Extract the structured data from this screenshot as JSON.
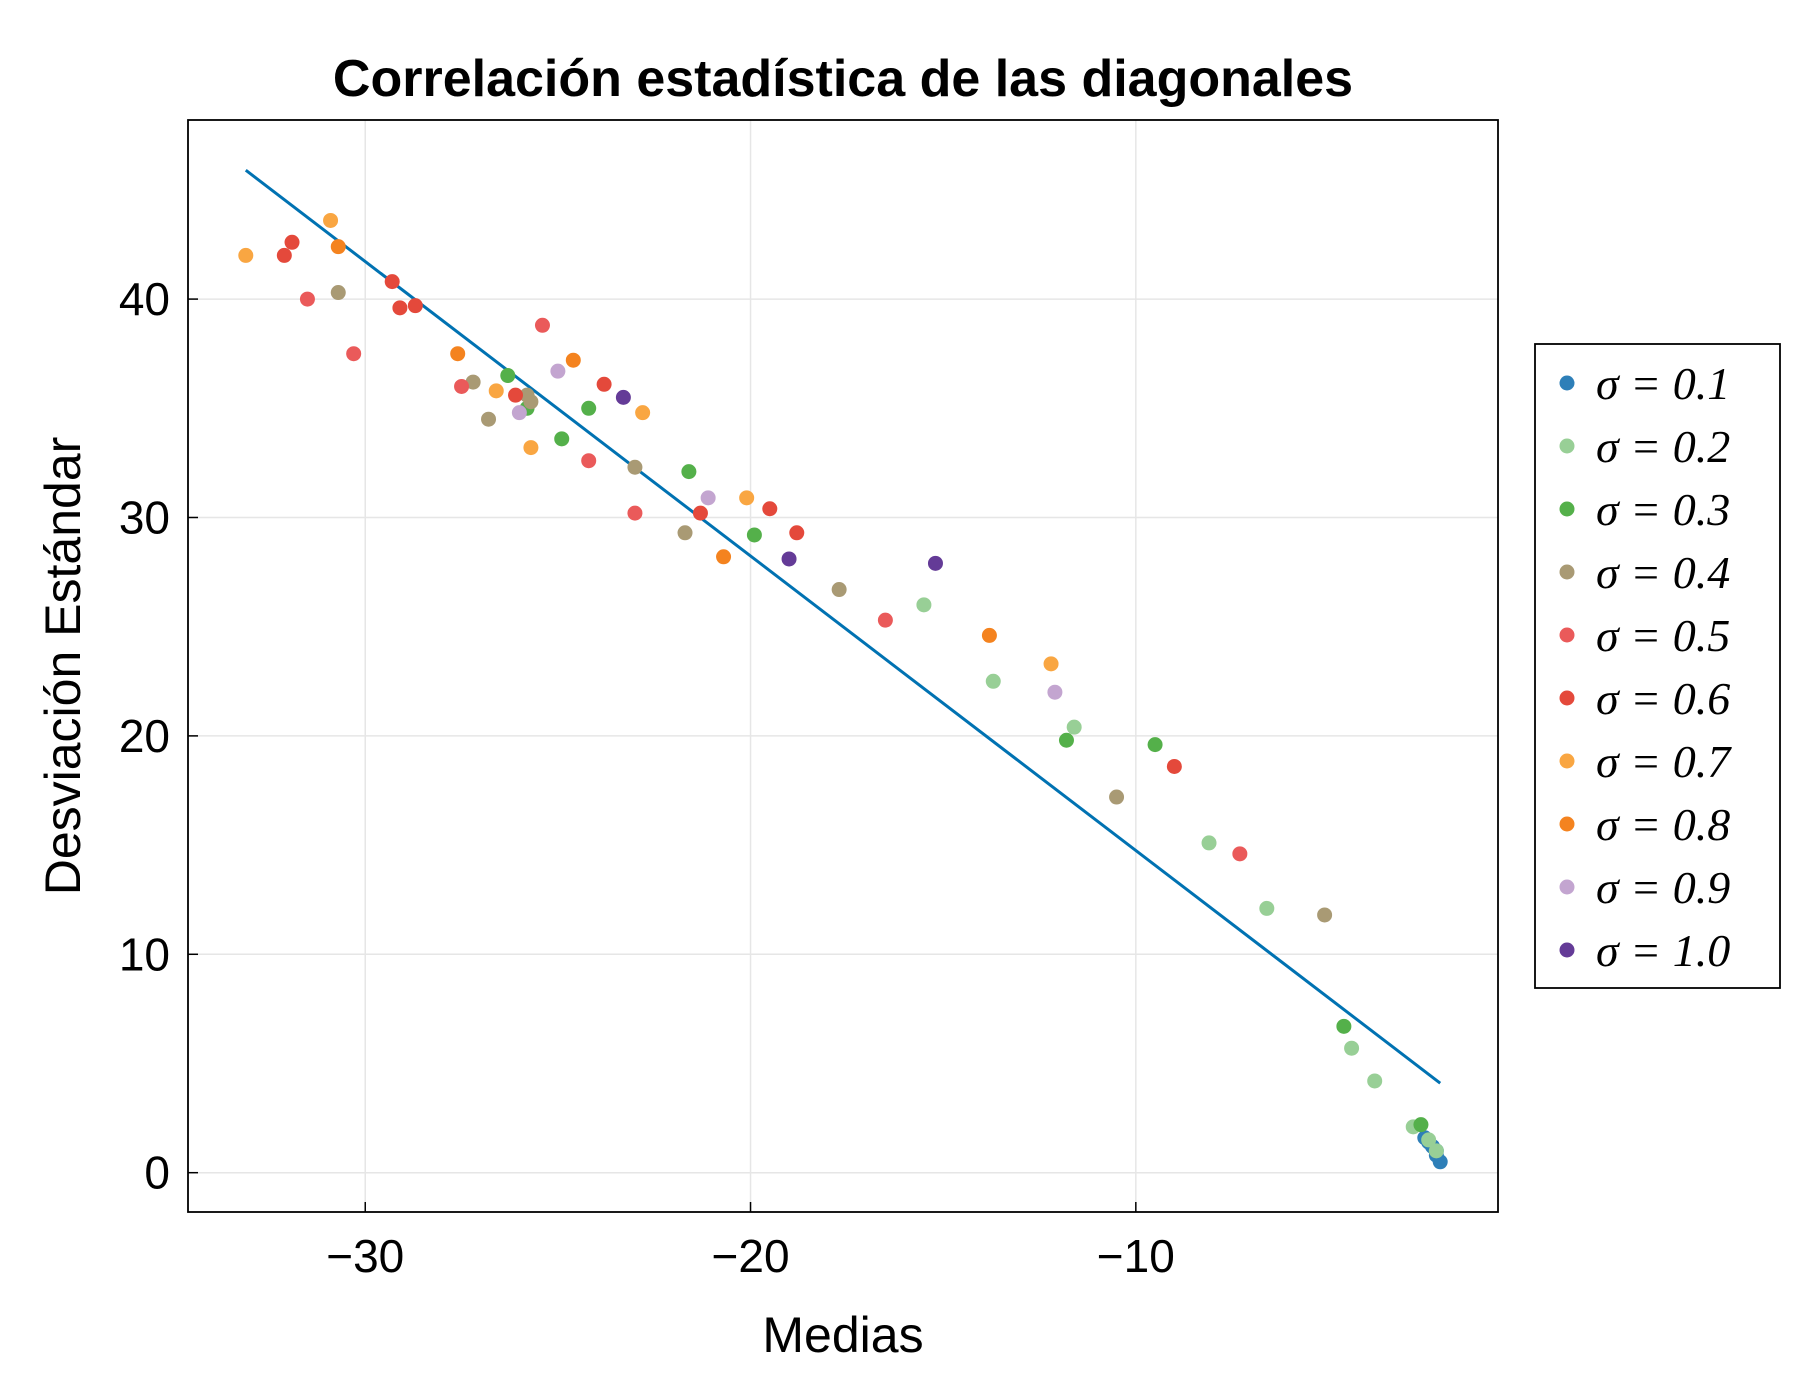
{
  "chart_data": {
    "type": "scatter",
    "title": "Correlación estadística de las diagonales",
    "xlabel": "Medias",
    "ylabel": "Desviación Estándar",
    "xlim": [
      -34.6,
      -0.6
    ],
    "ylim": [
      -1.8,
      48.2
    ],
    "xticks": [
      -30,
      -20,
      -10
    ],
    "xtick_labels": [
      "−30",
      "−20",
      "−10"
    ],
    "yticks": [
      0,
      10,
      20,
      30,
      40
    ],
    "ytick_labels": [
      "0",
      "10",
      "20",
      "30",
      "40"
    ],
    "grid": true,
    "legend_position": "right",
    "fit_line": {
      "color": "#0072b2",
      "x": [
        -33.1,
        -2.1
      ],
      "y": [
        45.9,
        4.1
      ]
    },
    "series": [
      {
        "name": "σ = 0.1",
        "color": "#2e7fb8",
        "points": [
          [
            -2.1,
            0.5
          ],
          [
            -2.2,
            1.0
          ],
          [
            -2.4,
            1.4
          ],
          [
            -2.5,
            1.6
          ],
          [
            -2.2,
            0.8
          ],
          [
            -2.3,
            1.2
          ]
        ]
      },
      {
        "name": "σ = 0.2",
        "color": "#98cf96",
        "points": [
          [
            -15.5,
            26.0
          ],
          [
            -13.7,
            22.5
          ],
          [
            -11.6,
            20.4
          ],
          [
            -8.1,
            15.1
          ],
          [
            -6.6,
            12.1
          ],
          [
            -4.4,
            5.7
          ],
          [
            -3.8,
            4.2
          ],
          [
            -2.8,
            2.1
          ],
          [
            -2.4,
            1.5
          ],
          [
            -2.2,
            1.0
          ]
        ]
      },
      {
        "name": "σ = 0.3",
        "color": "#54b04a",
        "points": [
          [
            -26.3,
            36.5
          ],
          [
            -25.8,
            35.0
          ],
          [
            -24.9,
            33.6
          ],
          [
            -24.2,
            35.0
          ],
          [
            -21.6,
            32.1
          ],
          [
            -19.9,
            29.2
          ],
          [
            -11.8,
            19.8
          ],
          [
            -9.5,
            19.6
          ],
          [
            -4.6,
            6.7
          ],
          [
            -2.6,
            2.2
          ]
        ]
      },
      {
        "name": "σ = 0.4",
        "color": "#a99a74",
        "points": [
          [
            -30.7,
            40.3
          ],
          [
            -27.2,
            36.2
          ],
          [
            -26.8,
            34.5
          ],
          [
            -25.8,
            35.6
          ],
          [
            -25.7,
            35.3
          ],
          [
            -23.0,
            32.3
          ],
          [
            -21.7,
            29.3
          ],
          [
            -17.7,
            26.7
          ],
          [
            -10.5,
            17.2
          ],
          [
            -5.1,
            11.8
          ]
        ]
      },
      {
        "name": "σ = 0.5",
        "color": "#ea5a5a",
        "points": [
          [
            -31.5,
            40.0
          ],
          [
            -30.3,
            37.5
          ],
          [
            -27.5,
            36.0
          ],
          [
            -25.4,
            38.8
          ],
          [
            -24.2,
            32.6
          ],
          [
            -23.0,
            30.2
          ],
          [
            -16.5,
            25.3
          ],
          [
            -7.3,
            14.6
          ]
        ]
      },
      {
        "name": "σ = 0.6",
        "color": "#e4493b",
        "points": [
          [
            -32.1,
            42.0
          ],
          [
            -31.9,
            42.6
          ],
          [
            -29.3,
            40.8
          ],
          [
            -29.1,
            39.6
          ],
          [
            -28.7,
            39.7
          ],
          [
            -26.1,
            35.6
          ],
          [
            -23.8,
            36.1
          ],
          [
            -21.3,
            30.2
          ],
          [
            -19.5,
            30.4
          ],
          [
            -18.8,
            29.3
          ],
          [
            -9.0,
            18.6
          ]
        ]
      },
      {
        "name": "σ = 0.7",
        "color": "#f9a642",
        "points": [
          [
            -33.1,
            42.0
          ],
          [
            -30.9,
            43.6
          ],
          [
            -26.6,
            35.8
          ],
          [
            -25.7,
            33.2
          ],
          [
            -22.8,
            34.8
          ],
          [
            -20.1,
            30.9
          ],
          [
            -12.2,
            23.3
          ]
        ]
      },
      {
        "name": "σ = 0.8",
        "color": "#f4831f",
        "points": [
          [
            -30.7,
            42.4
          ],
          [
            -27.6,
            37.5
          ],
          [
            -24.6,
            37.2
          ],
          [
            -20.7,
            28.2
          ],
          [
            -13.8,
            24.6
          ]
        ]
      },
      {
        "name": "σ = 0.9",
        "color": "#c3a5d0",
        "points": [
          [
            -26.0,
            34.8
          ],
          [
            -25.0,
            36.7
          ],
          [
            -21.1,
            30.9
          ],
          [
            -12.1,
            22.0
          ]
        ]
      },
      {
        "name": "σ = 1.0",
        "color": "#643b97",
        "points": [
          [
            -23.3,
            35.5
          ],
          [
            -19.0,
            28.1
          ],
          [
            -15.2,
            27.9
          ]
        ]
      }
    ]
  }
}
